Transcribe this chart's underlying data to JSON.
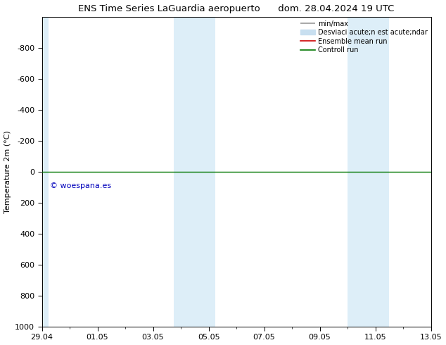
{
  "title_left": "ENS Time Series LaGuardia aeropuerto",
  "title_right": "dom. 28.04.2024 19 UTC",
  "ylabel": "Temperature 2m (°C)",
  "ylim_bottom": 1000,
  "ylim_top": -1000,
  "yticks": [
    -800,
    -600,
    -400,
    -200,
    0,
    200,
    400,
    600,
    800,
    1000
  ],
  "xtick_labels": [
    "29.04",
    "01.05",
    "03.05",
    "05.05",
    "07.05",
    "09.05",
    "11.05",
    "13.05"
  ],
  "xtick_positions": [
    0,
    2,
    4,
    6,
    8,
    10,
    12,
    14
  ],
  "shaded_bands": [
    {
      "x_start": 0.0,
      "x_end": 0.25,
      "color": "#ddeef8"
    },
    {
      "x_start": 4.75,
      "x_end": 6.25,
      "color": "#ddeef8"
    },
    {
      "x_start": 11.0,
      "x_end": 12.5,
      "color": "#ddeef8"
    }
  ],
  "control_run_y": 0,
  "legend_entries": [
    {
      "label": "min/max",
      "color": "#999999",
      "lw": 1.2
    },
    {
      "label": "Desviaci acute;n est acute;ndar",
      "color": "#c8dff0",
      "lw": 8
    },
    {
      "label": "Ensemble mean run",
      "color": "#cc0000",
      "lw": 1.2
    },
    {
      "label": "Controll run",
      "color": "#007700",
      "lw": 1.2
    }
  ],
  "watermark": "© woespana.es",
  "watermark_color": "#0000bb",
  "background_color": "#ffffff",
  "axes_bg_color": "#ffffff",
  "spine_color": "#000000",
  "font_size": 8,
  "title_font_size": 9.5
}
